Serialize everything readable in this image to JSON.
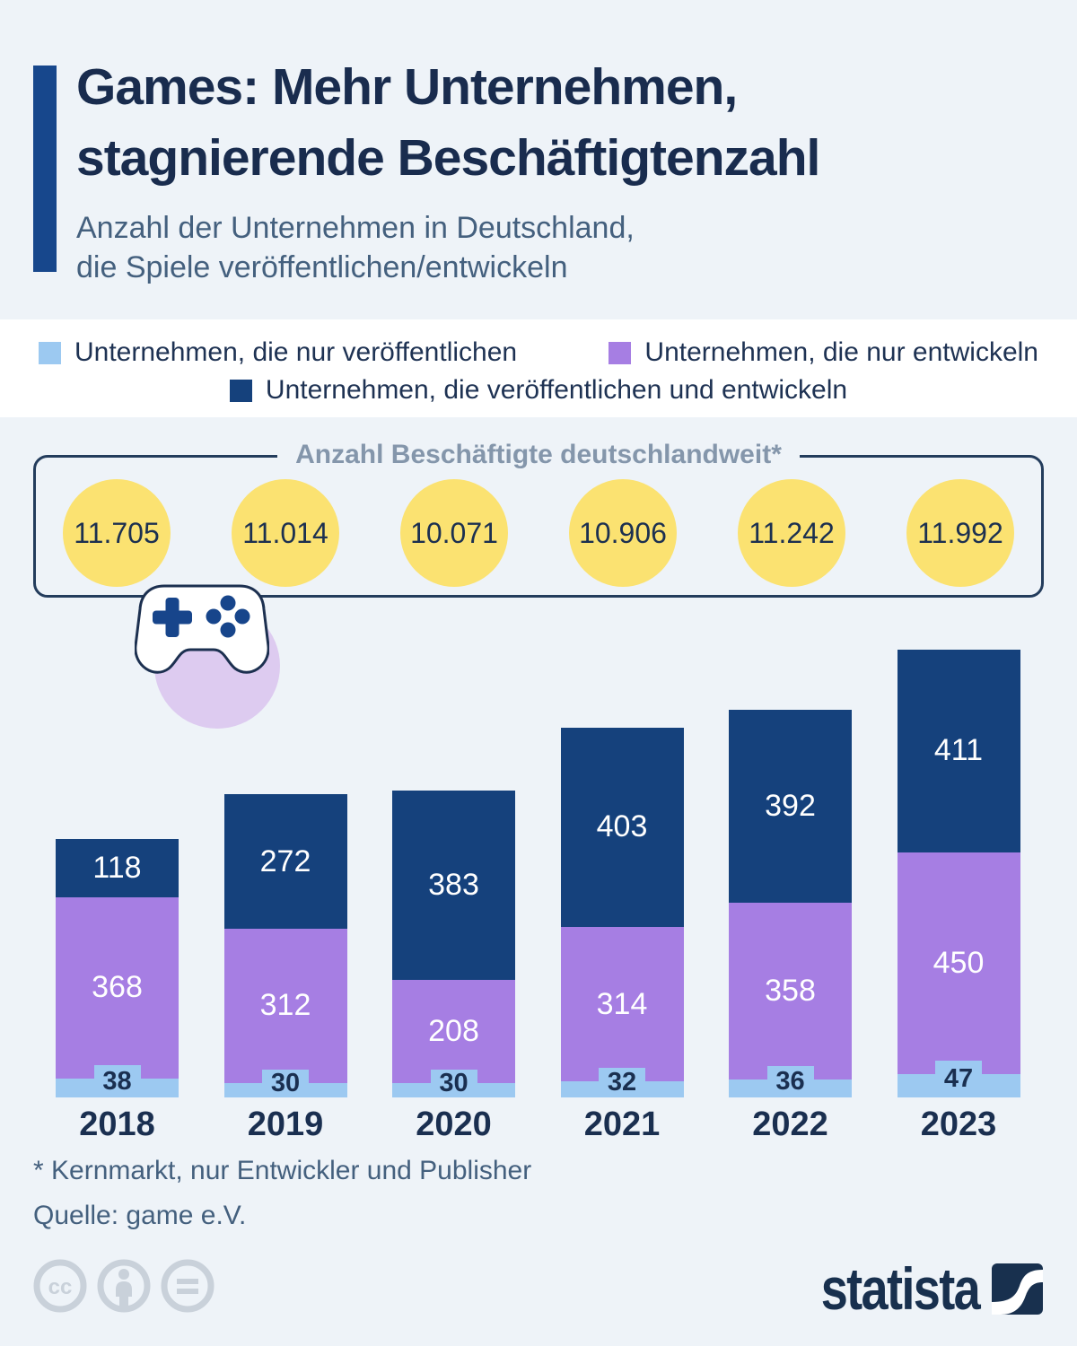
{
  "header": {
    "title_line1": "Games: Mehr Unternehmen,",
    "title_line2": "stagnierende Beschäftigtenzahl",
    "subtitle_line1": "Anzahl der Unternehmen in Deutschland,",
    "subtitle_line2": "die Spiele veröffentlichen/entwickeln"
  },
  "legend": {
    "items": [
      {
        "label": "Unternehmen, die nur veröffentlichen",
        "color": "#9cc9f1"
      },
      {
        "label": "Unternehmen, die nur entwickeln",
        "color": "#a67ee3"
      },
      {
        "label": "Unternehmen, die veröffentlichen und entwickeln",
        "color": "#15417c"
      }
    ]
  },
  "employees": {
    "title": "Anzahl Beschäftigte deutschlandweit*",
    "values": [
      "11.705",
      "11.014",
      "10.071",
      "10.906",
      "11.242",
      "11.992"
    ],
    "circle_color": "#fbe271"
  },
  "chart_data": {
    "type": "bar",
    "stacked": true,
    "categories": [
      "2018",
      "2019",
      "2020",
      "2021",
      "2022",
      "2023"
    ],
    "series": [
      {
        "name": "Unternehmen, die nur veröffentlichen",
        "color": "#9cc9f1",
        "values": [
          38,
          30,
          30,
          32,
          36,
          47
        ]
      },
      {
        "name": "Unternehmen, die nur entwickeln",
        "color": "#a67ee3",
        "values": [
          368,
          312,
          208,
          314,
          358,
          450
        ]
      },
      {
        "name": "Unternehmen, die veröffentlichen und entwickeln",
        "color": "#15417c",
        "values": [
          118,
          272,
          383,
          403,
          392,
          411
        ]
      }
    ],
    "employees_per_year": [
      "11.705",
      "11.014",
      "10.071",
      "10.906",
      "11.242",
      "11.992"
    ],
    "title": "Anzahl der Unternehmen in Deutschland, die Spiele veröffentlichen/entwickeln",
    "xlabel": "",
    "ylabel": "",
    "ylim": [
      0,
      950
    ],
    "grid": false,
    "legend_position": "top"
  },
  "footer": {
    "footnote": "* Kernmarkt, nur Entwickler und Publisher",
    "source": "Quelle: game e.V.",
    "brand": "statista"
  },
  "colors": {
    "background": "#eef3f8",
    "legend_band": "#ffffff",
    "accent_bar": "#17478c",
    "title_text": "#192c4e",
    "subtitle_text": "#44607e",
    "box_border": "#233c5c",
    "box_title_text": "#8496ab",
    "circle_yellow": "#fbe271",
    "lavender": "#ddcbf0",
    "controller_blue": "#17458b",
    "cc_gray": "#c9d1da",
    "brand_navy": "#18304e"
  }
}
